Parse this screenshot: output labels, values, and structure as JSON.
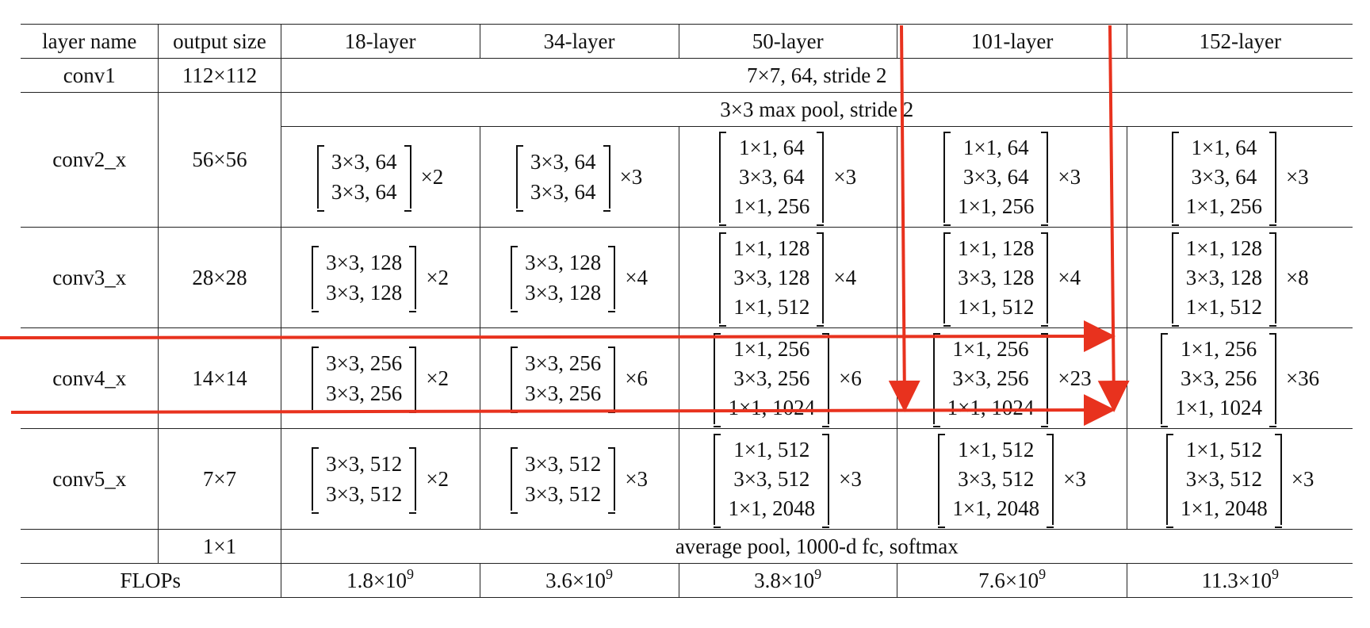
{
  "header": {
    "layer_name": "layer name",
    "output_size": "output size",
    "layers": [
      "18-layer",
      "34-layer",
      "50-layer",
      "101-layer",
      "152-layer"
    ]
  },
  "conv1": {
    "name": "conv1",
    "size": "112×112",
    "spec": "7×7, 64, stride 2"
  },
  "conv2": {
    "name": "conv2_x",
    "size": "56×56",
    "pool": "3×3 max pool, stride 2",
    "blocks": [
      {
        "lines": [
          "3×3, 64",
          "3×3, 64"
        ],
        "rep": "×2"
      },
      {
        "lines": [
          "3×3, 64",
          "3×3, 64"
        ],
        "rep": "×3"
      },
      {
        "lines": [
          "1×1, 64",
          "3×3, 64",
          "1×1, 256"
        ],
        "rep": "×3"
      },
      {
        "lines": [
          "1×1, 64",
          "3×3, 64",
          "1×1, 256"
        ],
        "rep": "×3"
      },
      {
        "lines": [
          "1×1, 64",
          "3×3, 64",
          "1×1, 256"
        ],
        "rep": "×3"
      }
    ]
  },
  "conv3": {
    "name": "conv3_x",
    "size": "28×28",
    "blocks": [
      {
        "lines": [
          "3×3, 128",
          "3×3, 128"
        ],
        "rep": "×2"
      },
      {
        "lines": [
          "3×3, 128",
          "3×3, 128"
        ],
        "rep": "×4"
      },
      {
        "lines": [
          "1×1, 128",
          "3×3, 128",
          "1×1, 512"
        ],
        "rep": "×4"
      },
      {
        "lines": [
          "1×1, 128",
          "3×3, 128",
          "1×1, 512"
        ],
        "rep": "×4"
      },
      {
        "lines": [
          "1×1, 128",
          "3×3, 128",
          "1×1, 512"
        ],
        "rep": "×8"
      }
    ]
  },
  "conv4": {
    "name": "conv4_x",
    "size": "14×14",
    "blocks": [
      {
        "lines": [
          "3×3, 256",
          "3×3, 256"
        ],
        "rep": "×2"
      },
      {
        "lines": [
          "3×3, 256",
          "3×3, 256"
        ],
        "rep": "×6"
      },
      {
        "lines": [
          "1×1, 256",
          "3×3, 256",
          "1×1, 1024"
        ],
        "rep": "×6"
      },
      {
        "lines": [
          "1×1, 256",
          "3×3, 256",
          "1×1, 1024"
        ],
        "rep": "×23"
      },
      {
        "lines": [
          "1×1, 256",
          "3×3, 256",
          "1×1, 1024"
        ],
        "rep": "×36"
      }
    ]
  },
  "conv5": {
    "name": "conv5_x",
    "size": "7×7",
    "blocks": [
      {
        "lines": [
          "3×3, 512",
          "3×3, 512"
        ],
        "rep": "×2"
      },
      {
        "lines": [
          "3×3, 512",
          "3×3, 512"
        ],
        "rep": "×3"
      },
      {
        "lines": [
          "1×1, 512",
          "3×3, 512",
          "1×1, 2048"
        ],
        "rep": "×3"
      },
      {
        "lines": [
          "1×1, 512",
          "3×3, 512",
          "1×1, 2048"
        ],
        "rep": "×3"
      },
      {
        "lines": [
          "1×1, 512",
          "3×3, 512",
          "1×1, 2048"
        ],
        "rep": "×3"
      }
    ]
  },
  "avgpool": {
    "size": "1×1",
    "spec": "average pool, 1000-d fc, softmax"
  },
  "flops": {
    "label": "FLOPs",
    "values": [
      {
        "mantissa": "1.8×10",
        "exp": "9"
      },
      {
        "mantissa": "3.6×10",
        "exp": "9"
      },
      {
        "mantissa": "3.8×10",
        "exp": "9"
      },
      {
        "mantissa": "7.6×10",
        "exp": "9"
      },
      {
        "mantissa": "11.3×10",
        "exp": "9"
      }
    ]
  },
  "annotation": {
    "color": "#e8321e"
  }
}
